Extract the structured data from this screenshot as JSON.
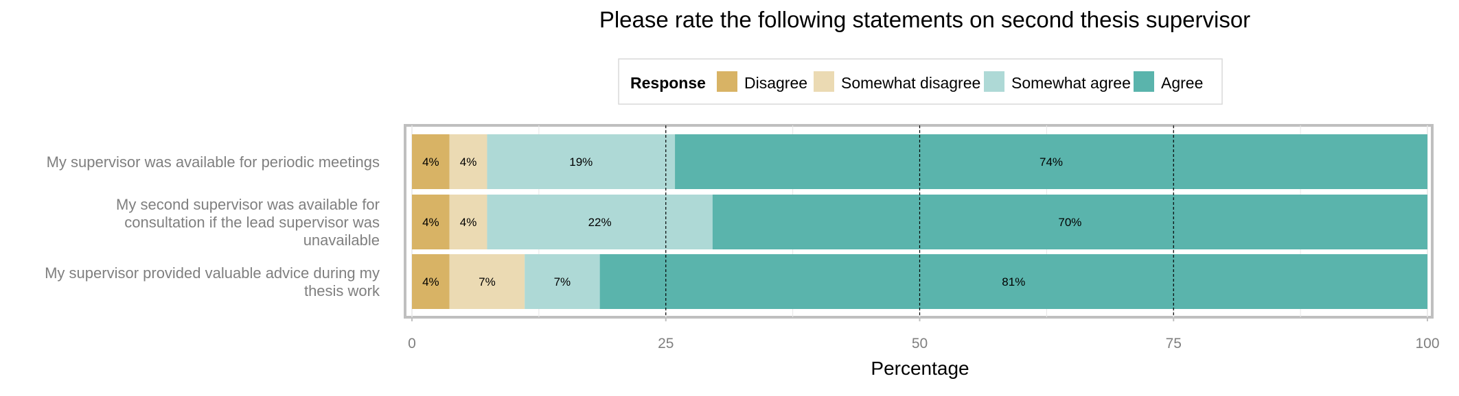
{
  "chart_data": {
    "type": "bar",
    "orientation": "horizontal",
    "stacked": true,
    "title": "Please rate the following statements on second thesis supervisor",
    "xlabel": "Percentage",
    "ylabel": "",
    "xlim": [
      0,
      100
    ],
    "xticks": [
      "0",
      "25",
      "50",
      "75",
      "100"
    ],
    "grid": true,
    "legend": {
      "title": "Response",
      "position": "top",
      "entries": [
        "Disagree",
        "Somewhat disagree",
        "Somewhat agree",
        "Agree"
      ]
    },
    "categories": [
      [
        "My supervisor was available for periodic meetings"
      ],
      [
        "My second supervisor was available for",
        "consultation if the lead supervisor was",
        "unavailable"
      ],
      [
        "My supervisor provided valuable advice during my",
        "thesis work"
      ]
    ],
    "series": [
      {
        "name": "Disagree",
        "color": "#d8b365",
        "values": [
          3.7,
          3.7,
          3.7
        ],
        "labels": [
          "4%",
          "4%",
          "4%"
        ]
      },
      {
        "name": "Somewhat disagree",
        "color": "#ebdab3",
        "values": [
          3.7,
          3.7,
          7.4
        ],
        "labels": [
          "4%",
          "4%",
          "7%"
        ]
      },
      {
        "name": "Somewhat agree",
        "color": "#aed9d6",
        "values": [
          18.5,
          22.2,
          7.4
        ],
        "labels": [
          "19%",
          "22%",
          "7%"
        ]
      },
      {
        "name": "Agree",
        "color": "#5ab4ac",
        "values": [
          74.1,
          70.4,
          81.5
        ],
        "labels": [
          "74%",
          "70%",
          "81%"
        ]
      }
    ]
  }
}
